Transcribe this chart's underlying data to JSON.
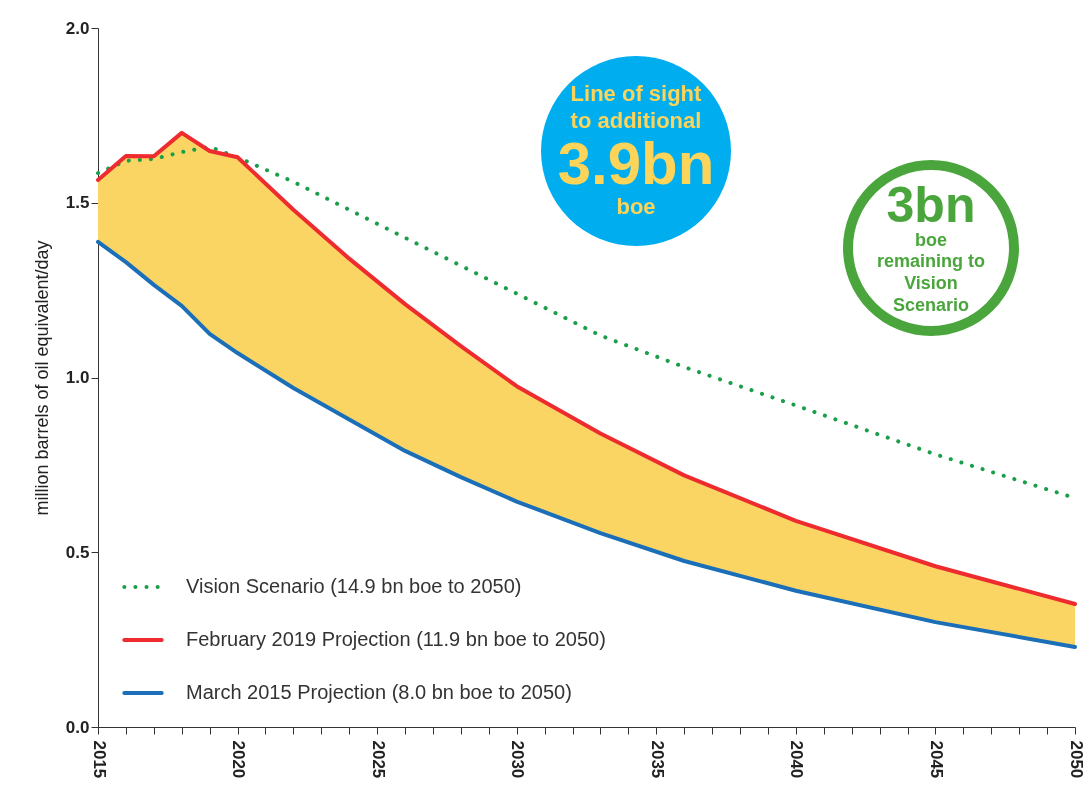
{
  "chart_data": {
    "type": "line",
    "ylabel": "million barrels of oil equivalent/day",
    "x": [
      2015,
      2016,
      2017,
      2018,
      2019,
      2020,
      2022,
      2024,
      2026,
      2028,
      2030,
      2033,
      2036,
      2040,
      2045,
      2050
    ],
    "series": [
      {
        "name": "Vision Scenario (14.9 bn boe to 2050)",
        "color": "#1a9e4a",
        "line_style": "dotted",
        "values": [
          1.585,
          1.62,
          1.625,
          1.645,
          1.66,
          1.63,
          1.56,
          1.48,
          1.4,
          1.32,
          1.24,
          1.12,
          1.03,
          0.92,
          0.78,
          0.655
        ]
      },
      {
        "name": "February 2019 Projection (11.9 bn boe to 2050)",
        "color": "#ee2b2f",
        "line_style": "solid",
        "values": [
          1.565,
          1.634,
          1.633,
          1.7,
          1.648,
          1.63,
          1.48,
          1.34,
          1.21,
          1.09,
          0.975,
          0.84,
          0.72,
          0.59,
          0.46,
          0.352
        ],
        "lower": [
          1.388,
          1.33,
          1.265,
          1.205,
          1.125,
          1.07,
          0.97,
          0.88,
          0.79,
          0.715,
          0.645,
          0.555,
          0.475,
          0.39,
          0.3,
          0.229
        ],
        "upper": [
          1.565,
          1.634,
          1.633,
          1.7,
          1.648,
          1.63,
          1.48,
          1.34,
          1.21,
          1.09,
          0.975,
          0.84,
          0.72,
          0.59,
          0.46,
          0.352
        ]
      },
      {
        "name": "March 2015 Projection (8.0 bn boe to 2050)",
        "color": "#1a6fb8",
        "line_style": "solid",
        "values": [
          1.388,
          1.33,
          1.265,
          1.205,
          1.125,
          1.07,
          0.97,
          0.88,
          0.79,
          0.715,
          0.645,
          0.555,
          0.475,
          0.39,
          0.3,
          0.229
        ]
      }
    ],
    "xlim": [
      2015,
      2050
    ],
    "xticks": [
      2015,
      {
        "value": 2016,
        "label": null
      },
      {
        "value": 2017,
        "label": null
      },
      {
        "value": 2018,
        "label": null
      },
      {
        "value": 2019,
        "label": null
      },
      2020,
      {
        "value": 2021,
        "label": null
      },
      {
        "value": 2022,
        "label": null
      },
      {
        "value": 2023,
        "label": null
      },
      {
        "value": 2024,
        "label": null
      },
      2025,
      {
        "value": 2026,
        "label": null
      },
      {
        "value": 2027,
        "label": null
      },
      {
        "value": 2028,
        "label": null
      },
      {
        "value": 2029,
        "label": null
      },
      2030,
      {
        "value": 2031,
        "label": null
      },
      {
        "value": 2032,
        "label": null
      },
      {
        "value": 2033,
        "label": null
      },
      {
        "value": 2034,
        "label": null
      },
      2035,
      {
        "value": 2036,
        "label": null
      },
      {
        "value": 2037,
        "label": null
      },
      {
        "value": 2038,
        "label": null
      },
      {
        "value": 2039,
        "label": null
      },
      2040,
      {
        "value": 2041,
        "label": null
      },
      {
        "value": 2042,
        "label": null
      },
      {
        "value": 2043,
        "label": null
      },
      {
        "value": 2044,
        "label": null
      },
      2045,
      {
        "value": 2046,
        "label": null
      },
      {
        "value": 2047,
        "label": null
      },
      {
        "value": 2048,
        "label": null
      },
      {
        "value": 2049,
        "label": null
      },
      2050
    ],
    "ylim": [
      0,
      2
    ],
    "yticks": [
      {
        "value": 0,
        "label": "0.0"
      },
      0.5,
      {
        "value": 1,
        "label": "1.0"
      },
      1.5,
      {
        "value": 2,
        "label": "2.0"
      }
    ],
    "grid": false,
    "legend": "bottom left",
    "marker": "none",
    "annotations": [
      "Line of sight\nto additional",
      "3.9bn",
      "boe",
      "3bn",
      "boe\nremaining to\nVision\nScenario"
    ]
  }
}
